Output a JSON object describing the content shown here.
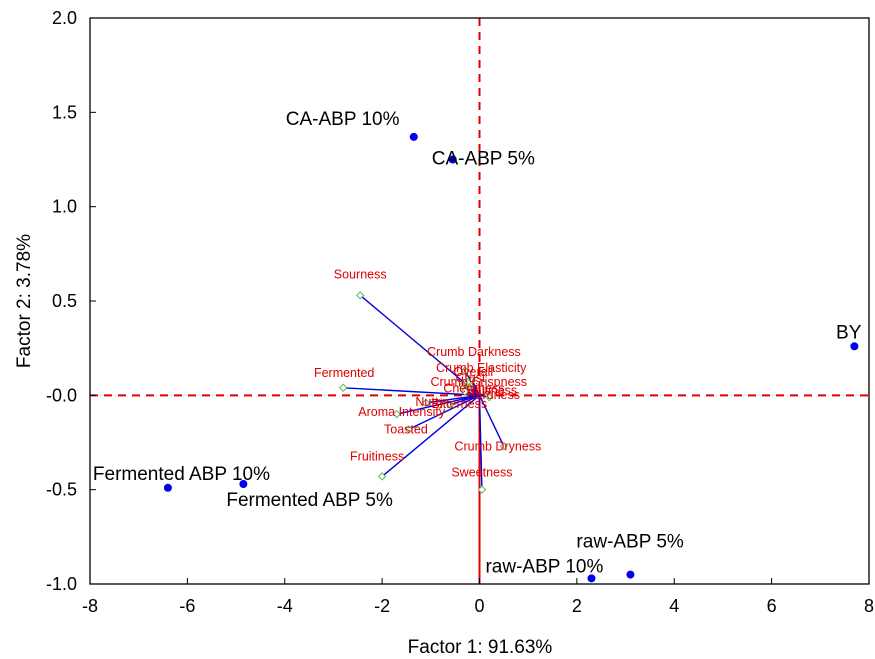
{
  "chart_data": {
    "type": "scatter",
    "title": "",
    "xlabel": "Factor 1: 91.63%",
    "ylabel": "Factor 2:  3.78%",
    "xlim": [
      -8,
      8
    ],
    "ylim": [
      -1.0,
      2.0
    ],
    "xticks": [
      -8,
      -6,
      -4,
      -2,
      0,
      2,
      4,
      6,
      8
    ],
    "xtick_labels": [
      "-8",
      "-6",
      "-4",
      "-2",
      "0",
      "2",
      "4",
      "6",
      "8"
    ],
    "yticks": [
      -1.0,
      -0.5,
      0.0,
      0.5,
      1.0,
      1.5,
      2.0
    ],
    "ytick_labels": [
      "-1.0",
      "-0.5",
      "-0.0",
      "0.5",
      "1.0",
      "1.5",
      "2.0"
    ],
    "grid": false,
    "colors": {
      "points": "#0000ee",
      "loadings": "#0000dd",
      "reference": "#e00000",
      "var_labels": "#e00000",
      "var_markers": "#5ab55a"
    },
    "points": [
      {
        "label": "CA-ABP 10%",
        "x": -1.35,
        "y": 1.37
      },
      {
        "label": "CA-ABP 5%",
        "x": -0.55,
        "y": 1.25
      },
      {
        "label": "BY",
        "x": 7.7,
        "y": 0.26
      },
      {
        "label": "Fermented ABP 10%",
        "x": -6.4,
        "y": -0.49
      },
      {
        "label": "Fermented ABP 5%",
        "x": -4.85,
        "y": -0.47
      },
      {
        "label": "raw-ABP 5%",
        "x": 3.1,
        "y": -0.95
      },
      {
        "label": "raw-ABP 10%",
        "x": 2.3,
        "y": -0.97
      }
    ],
    "loadings": [
      {
        "label": "Sourness",
        "x": -2.45,
        "y": 0.53
      },
      {
        "label": "Crumb Darkness",
        "x": -0.3,
        "y": 0.13
      },
      {
        "label": "Fermented",
        "x": -2.8,
        "y": 0.04
      },
      {
        "label": "Crumb Elasticity",
        "x": -0.15,
        "y": 0.08
      },
      {
        "label": "Overall",
        "x": -0.25,
        "y": 0.07
      },
      {
        "label": "Crust",
        "x": -0.35,
        "y": 0.05
      },
      {
        "label": "Crumb Crispness",
        "x": -0.2,
        "y": 0.04
      },
      {
        "label": "Chewiness",
        "x": -0.3,
        "y": 0.02
      },
      {
        "label": "Saltiness",
        "x": 0.15,
        "y": 0.01
      },
      {
        "label": "Hardness",
        "x": 0.2,
        "y": -0.01
      },
      {
        "label": "Nutty",
        "x": -1.1,
        "y": -0.04
      },
      {
        "label": "Bitterness",
        "x": -0.6,
        "y": -0.05
      },
      {
        "label": "Aroma Intensity",
        "x": -1.7,
        "y": -0.1
      },
      {
        "label": "Toasted",
        "x": -1.45,
        "y": -0.18
      },
      {
        "label": "Crumb Dryness",
        "x": 0.5,
        "y": -0.27
      },
      {
        "label": "Fruitiness",
        "x": -2.0,
        "y": -0.43
      },
      {
        "label": "Sweetness",
        "x": 0.05,
        "y": -0.5
      }
    ]
  }
}
